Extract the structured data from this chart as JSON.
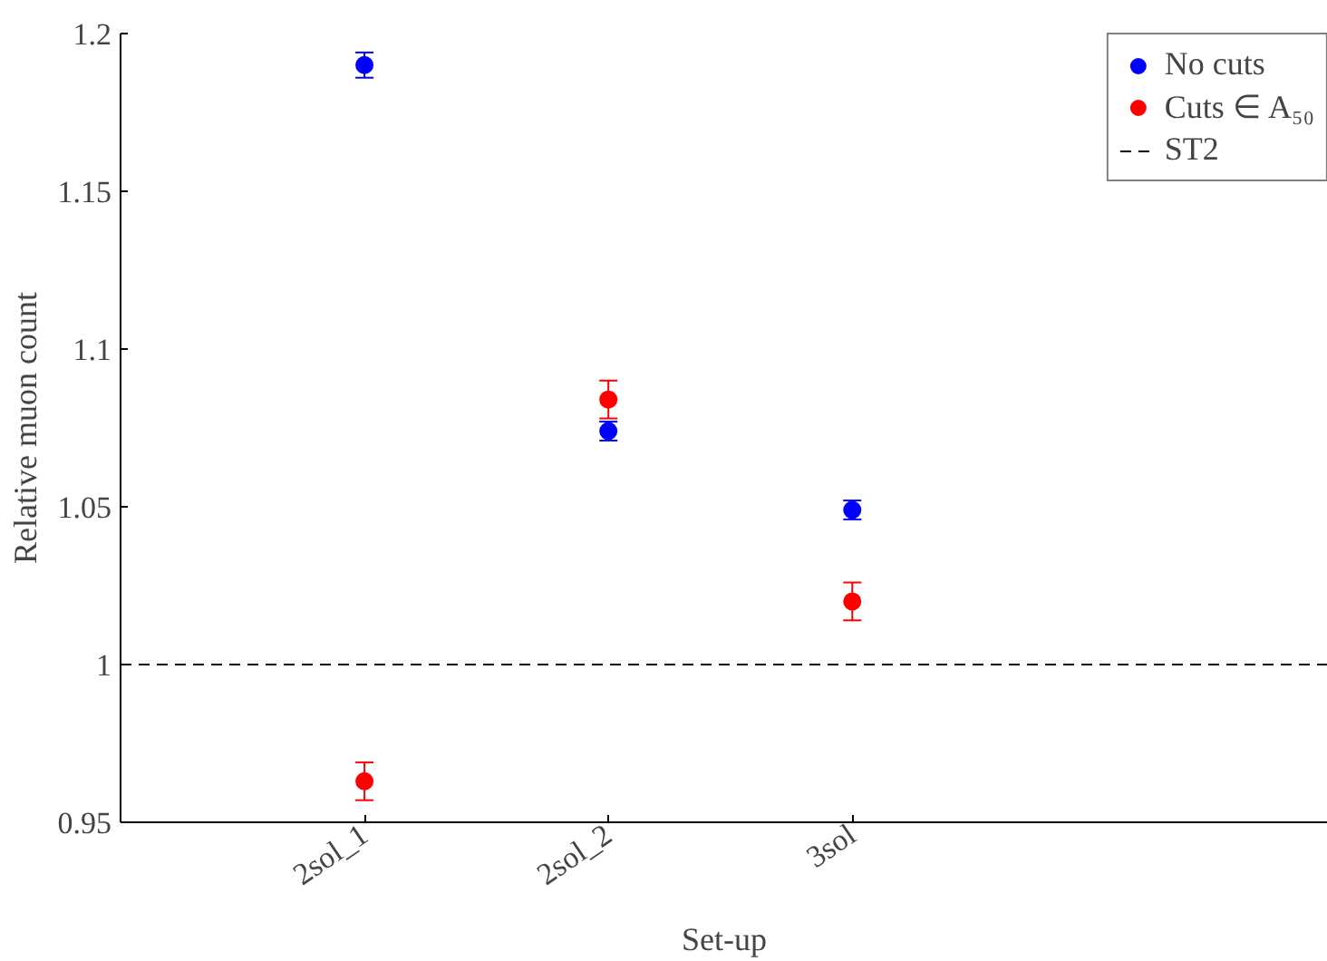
{
  "chart_data": {
    "type": "scatter",
    "xlabel": "Set-up",
    "ylabel": "Relative muon count",
    "categories": [
      "2sol_1",
      "2sol_2",
      "3sol"
    ],
    "series": [
      {
        "name": "No cuts",
        "color": "#0000ff",
        "values": [
          1.19,
          1.074,
          1.049
        ],
        "errors": [
          0.004,
          0.003,
          0.003
        ]
      },
      {
        "name": "Cuts ∈ A₅₀",
        "color": "#ff0000",
        "values": [
          0.963,
          1.084,
          1.02
        ],
        "errors": [
          0.006,
          0.006,
          0.006
        ]
      }
    ],
    "ref_lines": [
      {
        "axis": "y",
        "value": 1,
        "label": "ST2",
        "color": "#000000",
        "line_style": "dashed"
      }
    ],
    "ylim": [
      0.95,
      1.2
    ],
    "yticks": [
      0.95,
      1,
      1.05,
      1.1,
      1.15,
      1.2
    ],
    "marker": "circle",
    "grid": false,
    "legend": "top right"
  }
}
